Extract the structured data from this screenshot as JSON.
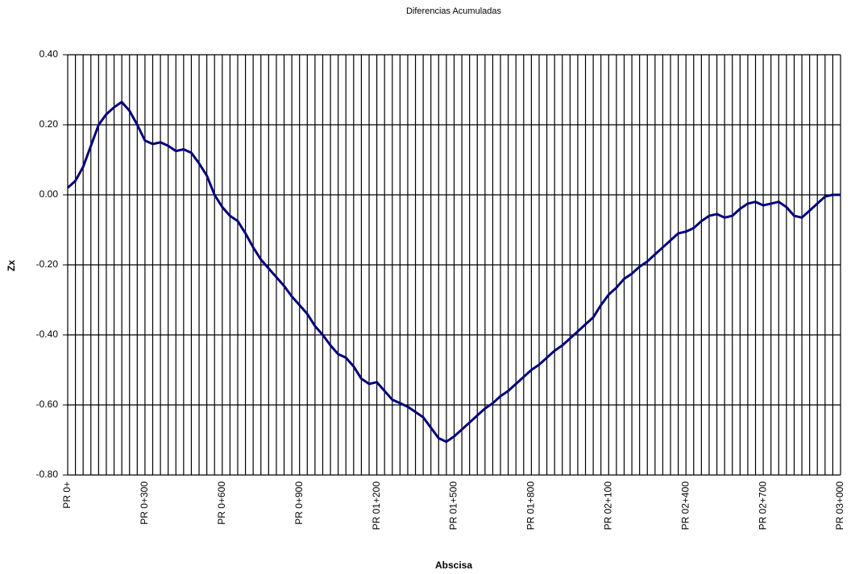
{
  "chart_data": {
    "type": "line",
    "title": "Diferencias Acumuladas",
    "x_label": "Abscisa",
    "y_label": "Zx",
    "color": "#000080",
    "grid": true,
    "categories": [
      "PR 0+",
      null,
      null,
      null,
      null,
      null,
      null,
      null,
      null,
      null,
      "PR 0+300",
      null,
      null,
      null,
      null,
      null,
      null,
      null,
      null,
      null,
      "PR 0+600",
      null,
      null,
      null,
      null,
      null,
      null,
      null,
      null,
      null,
      "PR 0+900",
      null,
      null,
      null,
      null,
      null,
      null,
      null,
      null,
      null,
      "PR 01+200",
      null,
      null,
      null,
      null,
      null,
      null,
      null,
      null,
      null,
      "PR 01+500",
      null,
      null,
      null,
      null,
      null,
      null,
      null,
      null,
      null,
      "PR 01+800",
      null,
      null,
      null,
      null,
      null,
      null,
      null,
      null,
      null,
      "PR 02+100",
      null,
      null,
      null,
      null,
      null,
      null,
      null,
      null,
      null,
      "PR 02+400",
      null,
      null,
      null,
      null,
      null,
      null,
      null,
      null,
      null,
      "PR 02+700",
      null,
      null,
      null,
      null,
      null,
      null,
      null,
      null,
      null,
      "PR 03+000"
    ],
    "values": [
      0.02,
      0.04,
      0.08,
      0.14,
      0.2,
      0.23,
      0.25,
      0.265,
      0.24,
      0.2,
      0.155,
      0.145,
      0.15,
      0.14,
      0.125,
      0.13,
      0.12,
      0.09,
      0.055,
      0.0,
      -0.035,
      -0.06,
      -0.075,
      -0.11,
      -0.15,
      -0.185,
      -0.21,
      -0.235,
      -0.26,
      -0.29,
      -0.315,
      -0.34,
      -0.375,
      -0.4,
      -0.43,
      -0.455,
      -0.465,
      -0.49,
      -0.525,
      -0.54,
      -0.535,
      -0.56,
      -0.585,
      -0.595,
      -0.605,
      -0.62,
      -0.635,
      -0.665,
      -0.695,
      -0.705,
      -0.69,
      -0.67,
      -0.65,
      -0.63,
      -0.61,
      -0.595,
      -0.575,
      -0.56,
      -0.54,
      -0.52,
      -0.5,
      -0.485,
      -0.465,
      -0.445,
      -0.43,
      -0.41,
      -0.39,
      -0.37,
      -0.35,
      -0.315,
      -0.285,
      -0.265,
      -0.24,
      -0.225,
      -0.205,
      -0.19,
      -0.17,
      -0.15,
      -0.13,
      -0.11,
      -0.105,
      -0.095,
      -0.075,
      -0.06,
      -0.055,
      -0.065,
      -0.06,
      -0.04,
      -0.025,
      -0.02,
      -0.03,
      -0.025,
      -0.02,
      -0.035,
      -0.06,
      -0.065,
      -0.045,
      -0.025,
      -0.005,
      0.0,
      0.0
    ],
    "ylim": [
      -0.8,
      0.4
    ],
    "yticks": [
      {
        "value": -0.8,
        "label": "-0.80"
      },
      {
        "value": -0.6,
        "label": "-0.60"
      },
      {
        "value": -0.4,
        "label": "-0.40"
      },
      {
        "value": -0.2,
        "label": "-0.20"
      },
      {
        "value": 0,
        "label": "0.00"
      },
      {
        "value": 0.2,
        "label": "0.20"
      },
      {
        "value": 0.4,
        "label": "0.40"
      }
    ]
  }
}
